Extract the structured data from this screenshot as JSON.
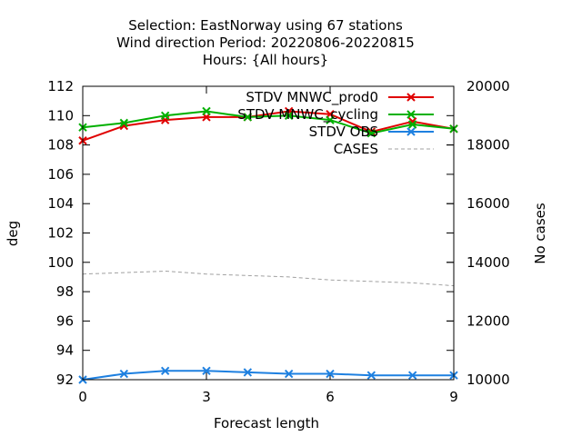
{
  "chart_data": {
    "type": "line",
    "title_lines": [
      "Selection: EastNorway using    67 stations",
      "Wind direction   Period: 20220806-20220815",
      "Hours: {All hours}"
    ],
    "xlabel": "Forecast length",
    "ylabel": "deg",
    "y2label": "No cases",
    "xlim": [
      0,
      9
    ],
    "ylim": [
      92,
      112
    ],
    "y2lim": [
      10000,
      20000
    ],
    "x_ticks": [
      0,
      3,
      6,
      9
    ],
    "y_ticks": [
      92,
      94,
      96,
      98,
      100,
      102,
      104,
      106,
      108,
      110,
      112
    ],
    "y2_ticks": [
      10000,
      12000,
      14000,
      16000,
      18000,
      20000
    ],
    "grid": false,
    "legend_position": "top-right",
    "x": [
      0,
      1,
      2,
      3,
      4,
      5,
      6,
      7,
      8,
      9
    ],
    "series": [
      {
        "name": "STDV MNWC_prod0",
        "color": "#e00000",
        "axis": "y",
        "marker": "x",
        "values": [
          108.3,
          109.3,
          109.7,
          109.9,
          109.9,
          110.3,
          110.1,
          108.9,
          109.6,
          109.1
        ]
      },
      {
        "name": "STDV MNWC_cycling",
        "color": "#00b000",
        "axis": "y",
        "marker": "x",
        "values": [
          109.2,
          109.5,
          110.0,
          110.3,
          109.9,
          110.0,
          109.7,
          108.8,
          109.4,
          109.1
        ]
      },
      {
        "name": "STDV OBS",
        "color": "#1e80e0",
        "axis": "y",
        "marker": "x",
        "values": [
          92.0,
          92.4,
          92.6,
          92.6,
          92.5,
          92.4,
          92.4,
          92.3,
          92.3,
          92.3
        ]
      },
      {
        "name": "CASES",
        "color": "#a0a0a0",
        "axis": "y2",
        "marker": "none",
        "dashed": true,
        "values": [
          13600,
          13650,
          13700,
          13600,
          13550,
          13500,
          13400,
          13350,
          13300,
          13200
        ]
      }
    ]
  }
}
